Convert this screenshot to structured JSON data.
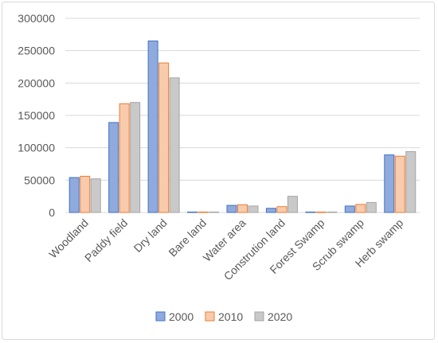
{
  "chart_data": {
    "type": "bar",
    "title": "",
    "xlabel": "",
    "ylabel": "",
    "ylim": [
      0,
      300000
    ],
    "yticks": [
      "0",
      "50000",
      "100000",
      "150000",
      "200000",
      "250000",
      "300000"
    ],
    "grid": true,
    "legend_position": "bottom",
    "categories": [
      "Woodland",
      "Paddy field",
      "Dry land",
      "Bare land",
      "Water area",
      "Constrution land",
      "Forest Swamp",
      "Scrub swamp",
      "Herb swamp"
    ],
    "series": [
      {
        "name": "2000",
        "color": "#8faadc",
        "stroke": "#4472c4",
        "values": [
          54000,
          139000,
          265000,
          500,
          11000,
          6500,
          300,
          10000,
          89000
        ]
      },
      {
        "name": "2010",
        "color": "#f8cbad",
        "stroke": "#ed7d31",
        "values": [
          56000,
          168000,
          231000,
          500,
          12000,
          9000,
          300,
          12500,
          87000
        ]
      },
      {
        "name": "2020",
        "color": "#c9c9c9",
        "stroke": "#a5a5a5",
        "values": [
          52000,
          170000,
          208000,
          500,
          10000,
          25000,
          300,
          15500,
          94000
        ]
      }
    ]
  }
}
